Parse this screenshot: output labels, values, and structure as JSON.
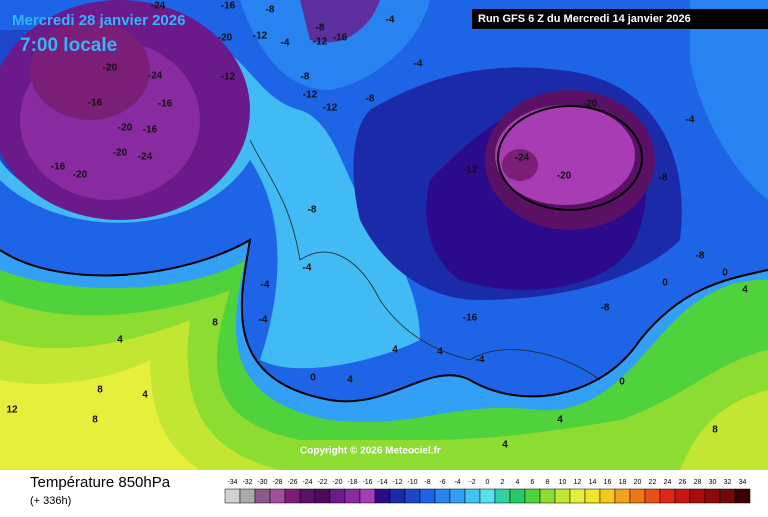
{
  "header": {
    "date": "Mercredi 28 janvier 2026",
    "time": "7:00 locale",
    "run": "Run GFS 6 Z du Mercredi 14 janvier 2026"
  },
  "copyright": "Copyright © 2026 Meteociel.fr",
  "footer": {
    "title": "Température 850hPa",
    "lead": "(+ 336h)"
  },
  "scale": {
    "values": [
      -34,
      -32,
      -30,
      -28,
      -26,
      -24,
      -22,
      -20,
      -18,
      -16,
      -14,
      -12,
      -10,
      -8,
      -6,
      -4,
      -2,
      0,
      2,
      4,
      6,
      8,
      10,
      12,
      14,
      16,
      18,
      20,
      22,
      24,
      26,
      28,
      30,
      32,
      34
    ],
    "colors": [
      "#d2d2d2",
      "#aaaaaa",
      "#8c5a8c",
      "#a0509a",
      "#7a1e78",
      "#5a1064",
      "#4a0a58",
      "#6a1a8a",
      "#8a2aa0",
      "#a83cb4",
      "#2c0a8c",
      "#1a2aa8",
      "#1e46c8",
      "#1e64e6",
      "#2882f0",
      "#32a0f5",
      "#46c3f5",
      "#5ae1f0",
      "#32d2a0",
      "#28c864",
      "#50d23c",
      "#8cdc32",
      "#c3e632",
      "#e6f03c",
      "#f0e628",
      "#f5c81e",
      "#f5a01e",
      "#f07814",
      "#eb5014",
      "#e12814",
      "#c81414",
      "#aa0a0a",
      "#8c0a0a",
      "#6e0a0a",
      "#3c0000"
    ]
  },
  "map_labels": [
    -24,
    -20,
    -16,
    -16,
    -20,
    -24,
    -20,
    -20,
    -16,
    -24,
    -16,
    -20,
    -16,
    -12,
    -12,
    -8,
    -8,
    -12,
    -16,
    -12,
    -8,
    -12,
    -8,
    -4,
    -4,
    -4,
    -12,
    -20,
    -24,
    -20,
    -8,
    -8,
    -4,
    0,
    0,
    4,
    4,
    8,
    8,
    4,
    4,
    12,
    8,
    4,
    0,
    -4,
    -16,
    -8,
    -4,
    -8,
    4,
    0,
    4,
    8,
    4,
    -4,
    -4
  ]
}
